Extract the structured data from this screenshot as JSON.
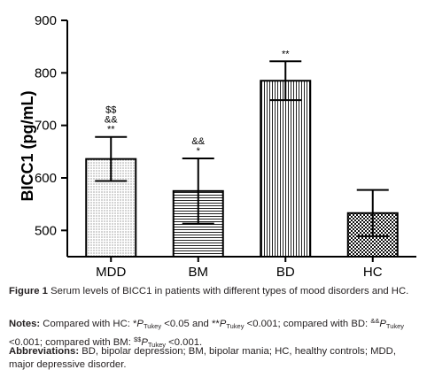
{
  "chart_data": {
    "type": "bar",
    "categories": [
      "MDD",
      "BM",
      "BD",
      "HC"
    ],
    "series": [
      {
        "values": [
          636,
          575,
          785,
          533
        ],
        "error": [
          42,
          62,
          37,
          44
        ]
      }
    ],
    "significance": [
      "$$\n&&\n**",
      "&&\n*",
      "**",
      ""
    ],
    "ylabel": "BICC1 (pg/mL)",
    "xlabel": "",
    "ylim": [
      450,
      900
    ],
    "yticks": [
      500,
      600,
      700,
      800,
      900
    ],
    "patterns": [
      "dots",
      "horizontal-lines",
      "vertical-lines",
      "checker"
    ],
    "grid": false
  },
  "caption": {
    "figure_label": "Figure 1",
    "figure_text": "Serum levels of BICC1 in patients with different types of mood disorders and HC.",
    "notes_label": "Notes:",
    "notes_p1": "Compared with HC: *",
    "notes_p": "P",
    "notes_tukey": "Tukey",
    "notes_p2": " <0.05 and **",
    "notes_p3": " <0.001; compared with BD: ",
    "notes_amp": "&&",
    "notes_p4": " <0.001; compared with BM: ",
    "notes_dollar": "$$",
    "notes_p5": " <0.001.",
    "abbr_label": "Abbreviations:",
    "abbr_text": "BD, bipolar depression; BM, bipolar mania; HC, healthy controls; MDD, major depressive disorder."
  }
}
